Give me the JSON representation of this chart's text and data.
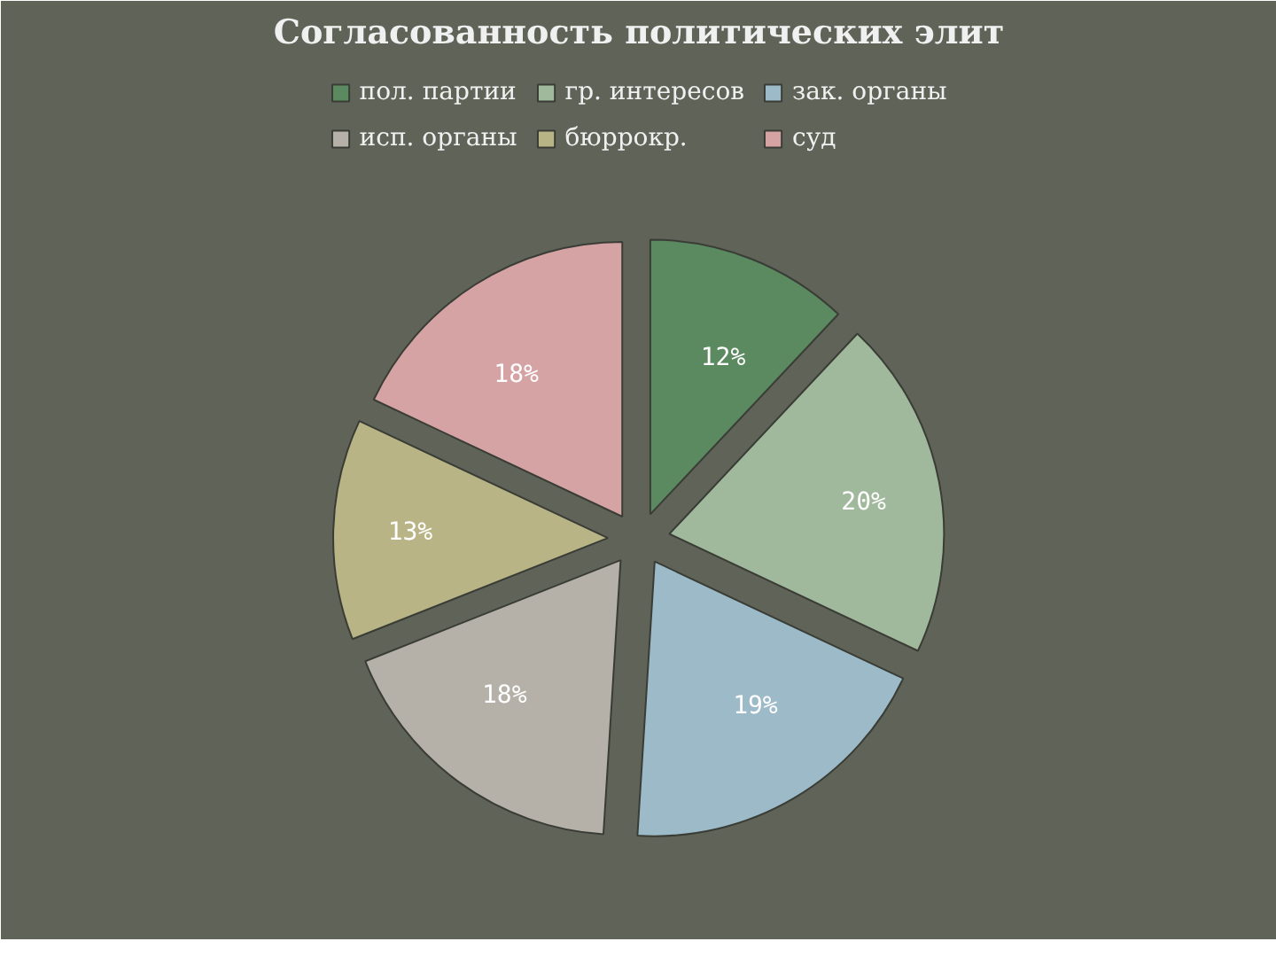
{
  "chart_data": {
    "type": "pie",
    "title": "Согласованность политических элит",
    "categories": [
      "пол. партии",
      "гр. интересов",
      "зак. органы",
      "исп. органы",
      "бюррокр.",
      "суд"
    ],
    "values": [
      12,
      20,
      19,
      18,
      13,
      18
    ],
    "colors": [
      "#5b8a60",
      "#a0b89b",
      "#9dbac8",
      "#b5b1a8",
      "#b9b485",
      "#d6a3a5"
    ],
    "value_labels": [
      "12%",
      "20%",
      "19%",
      "18%",
      "13%",
      "18%"
    ],
    "legend": "top"
  }
}
